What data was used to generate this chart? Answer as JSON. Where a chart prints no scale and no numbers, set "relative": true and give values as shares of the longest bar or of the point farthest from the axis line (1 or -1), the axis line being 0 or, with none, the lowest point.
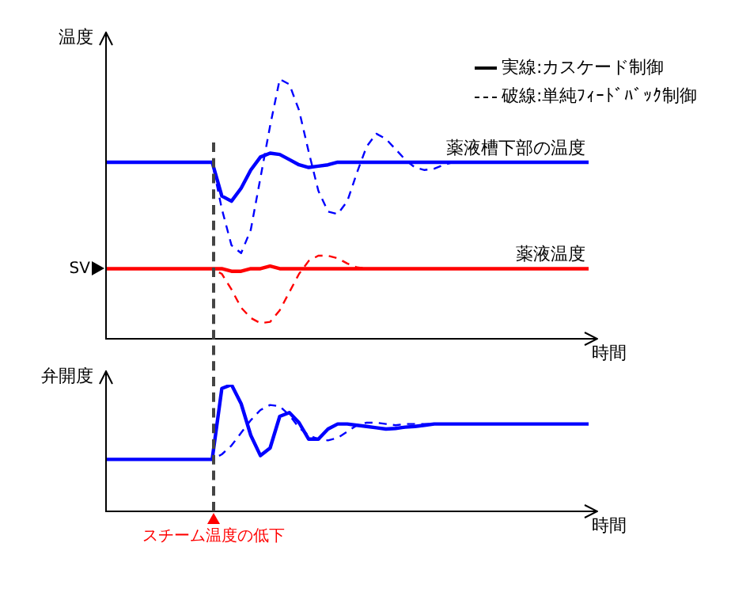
{
  "chart_data": [
    {
      "type": "line",
      "relative": true,
      "ylabel": "温度",
      "xlabel": "時間",
      "categories": [
        null,
        null,
        null,
        null,
        null,
        null,
        null,
        null,
        null,
        null,
        null,
        null,
        null,
        null,
        null,
        null,
        null,
        null,
        null,
        null,
        null,
        null,
        null,
        null,
        null,
        null,
        null,
        null,
        null,
        null,
        null,
        null,
        null,
        null,
        null,
        null,
        null,
        null,
        null,
        null,
        null,
        null,
        null,
        null,
        null,
        null,
        null,
        null,
        null,
        null,
        null
      ],
      "series": [
        {
          "name": "薬液槽下部の温度",
          "color": "#0000ff",
          "line_style": "solid",
          "values": [
            0.68,
            0.68,
            0.68,
            0.68,
            0.68,
            0.68,
            0.68,
            0.68,
            0.68,
            0.68,
            0.68,
            0.68,
            0.55,
            0.53,
            0.58,
            0.65,
            0.7,
            0.715,
            0.71,
            0.69,
            0.67,
            0.66,
            0.665,
            0.67,
            0.68,
            0.68,
            0.68,
            0.68,
            0.68,
            0.68,
            0.68,
            0.68,
            0.68,
            0.68,
            0.68,
            0.68,
            0.68,
            0.68,
            0.68,
            0.68,
            0.68,
            0.68,
            0.68,
            0.68,
            0.68,
            0.68,
            0.68,
            0.68,
            0.68,
            0.68,
            0.68
          ]
        },
        {
          "color": "#0000ff",
          "line_style": "dashed",
          "values": [
            0.68,
            0.68,
            0.68,
            0.68,
            0.68,
            0.68,
            0.68,
            0.68,
            0.68,
            0.68,
            0.68,
            0.68,
            0.5,
            0.36,
            0.33,
            0.42,
            0.62,
            0.82,
            1.0,
            0.98,
            0.88,
            0.72,
            0.57,
            0.49,
            0.48,
            0.53,
            0.64,
            0.74,
            0.79,
            0.77,
            0.73,
            0.69,
            0.66,
            0.65,
            0.655,
            0.67,
            0.68,
            0.68,
            0.68,
            0.68,
            0.68,
            0.68,
            0.68,
            0.68,
            0.68,
            0.68,
            0.68,
            0.68,
            0.68,
            0.68,
            0.68
          ]
        },
        {
          "name": "薬液温度",
          "color": "#ff0000",
          "line_style": "solid",
          "values": [
            0.27,
            0.27,
            0.27,
            0.27,
            0.27,
            0.27,
            0.27,
            0.27,
            0.27,
            0.27,
            0.27,
            0.27,
            0.27,
            0.26,
            0.26,
            0.27,
            0.27,
            0.28,
            0.27,
            0.27,
            0.27,
            0.27,
            0.27,
            0.27,
            0.27,
            0.27,
            0.27,
            0.27,
            0.27,
            0.27,
            0.27,
            0.27,
            0.27,
            0.27,
            0.27,
            0.27,
            0.27,
            0.27,
            0.27,
            0.27,
            0.27,
            0.27,
            0.27,
            0.27,
            0.27,
            0.27,
            0.27,
            0.27,
            0.27,
            0.27,
            0.27
          ]
        },
        {
          "color": "#ff0000",
          "line_style": "dashed",
          "values": [
            0.27,
            0.27,
            0.27,
            0.27,
            0.27,
            0.27,
            0.27,
            0.27,
            0.27,
            0.27,
            0.27,
            0.27,
            0.25,
            0.19,
            0.12,
            0.08,
            0.06,
            0.065,
            0.11,
            0.18,
            0.25,
            0.3,
            0.32,
            0.32,
            0.31,
            0.29,
            0.275,
            0.27,
            0.27,
            0.27,
            0.27,
            0.27,
            0.27,
            0.27,
            0.27,
            0.27,
            0.27,
            0.27,
            0.27,
            0.27,
            0.27,
            0.27,
            0.27,
            0.27,
            0.27,
            0.27,
            0.27,
            0.27,
            0.27,
            0.27,
            0.27
          ]
        }
      ],
      "annotations": [
        "実線:カスケード制御",
        "破線:単純ﾌｨｰﾄﾞﾊﾞｯｸ制御",
        "SV"
      ]
    },
    {
      "type": "line",
      "relative": true,
      "ylabel": "弁開度",
      "xlabel": "時間",
      "categories": [
        null,
        null,
        null,
        null,
        null,
        null,
        null,
        null,
        null,
        null,
        null,
        null,
        null,
        null,
        null,
        null,
        null,
        null,
        null,
        null,
        null,
        null,
        null,
        null,
        null,
        null,
        null,
        null,
        null,
        null,
        null,
        null,
        null,
        null,
        null,
        null,
        null,
        null,
        null,
        null,
        null,
        null,
        null,
        null,
        null,
        null,
        null,
        null,
        null,
        null,
        null
      ],
      "series": [
        {
          "color": "#0000ff",
          "line_style": "solid",
          "values": [
            0.41,
            0.41,
            0.41,
            0.41,
            0.41,
            0.41,
            0.41,
            0.41,
            0.41,
            0.41,
            0.41,
            0.41,
            0.97,
            1.0,
            0.85,
            0.6,
            0.44,
            0.5,
            0.75,
            0.78,
            0.7,
            0.57,
            0.57,
            0.65,
            0.69,
            0.69,
            0.68,
            0.67,
            0.66,
            0.65,
            0.655,
            0.665,
            0.67,
            0.68,
            0.69,
            0.69,
            0.69,
            0.69,
            0.69,
            0.69,
            0.69,
            0.69,
            0.69,
            0.69,
            0.69,
            0.69,
            0.69,
            0.69,
            0.69,
            0.69,
            0.69
          ]
        },
        {
          "color": "#0000ff",
          "line_style": "dashed",
          "values": [
            0.41,
            0.41,
            0.41,
            0.41,
            0.41,
            0.41,
            0.41,
            0.41,
            0.41,
            0.41,
            0.41,
            0.41,
            0.45,
            0.52,
            0.62,
            0.72,
            0.8,
            0.84,
            0.83,
            0.76,
            0.66,
            0.6,
            0.57,
            0.56,
            0.58,
            0.63,
            0.68,
            0.7,
            0.7,
            0.69,
            0.68,
            0.69,
            0.69,
            0.69,
            0.69,
            0.69,
            0.69,
            0.69,
            0.69,
            0.69,
            0.69,
            0.69,
            0.69,
            0.69,
            0.69,
            0.69,
            0.69,
            0.69,
            0.69,
            0.69,
            0.69
          ]
        }
      ],
      "annotations": [
        "スチーム温度の低下"
      ]
    }
  ]
}
